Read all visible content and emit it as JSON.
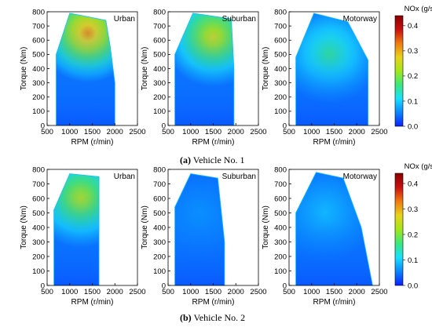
{
  "colorbar": {
    "title": "NOx (g/s)",
    "ticks": [
      "0.4",
      "0.3",
      "0.2",
      "0.1",
      "0.0"
    ],
    "range": [
      0,
      0.44
    ],
    "colors": [
      "#0a1fff",
      "#0a86ff",
      "#19e0ff",
      "#3ae87a",
      "#a3e619",
      "#e8d21a",
      "#f07a10",
      "#c81010",
      "#8a0000"
    ]
  },
  "captions": [
    {
      "label": "(a)",
      "text": "Vehicle No. 1"
    },
    {
      "label": "(b)",
      "text": "Vehicle No. 2"
    }
  ],
  "chart_data": [
    {
      "type": "heatmap",
      "title": "Urban",
      "xlabel": "RPM (r/min)",
      "ylabel": "Torque (Nm)",
      "xlim": [
        500,
        2500
      ],
      "ylim": [
        0,
        800
      ],
      "xticks": [
        "500",
        "1000",
        "1500",
        "2000",
        "2500"
      ],
      "yticks": [
        "0",
        "100",
        "200",
        "300",
        "400",
        "500",
        "600",
        "700",
        "800"
      ],
      "envelope": [
        [
          700,
          0
        ],
        [
          700,
          500
        ],
        [
          1000,
          790
        ],
        [
          1800,
          740
        ],
        [
          1900,
          550
        ],
        [
          2000,
          300
        ],
        [
          2000,
          0
        ]
      ],
      "nox_peak": 0.32,
      "nox_peak_at": [
        1400,
        650
      ]
    },
    {
      "type": "heatmap",
      "title": "Suburban",
      "xlabel": "RPM (r/min)",
      "ylabel": "Torque (Nm)",
      "xlim": [
        500,
        2500
      ],
      "ylim": [
        0,
        800
      ],
      "xticks": [
        "500",
        "1000",
        "1500",
        "2000",
        "2500"
      ],
      "yticks": [
        "0",
        "100",
        "200",
        "300",
        "400",
        "500",
        "600",
        "700",
        "800"
      ],
      "envelope": [
        [
          650,
          0
        ],
        [
          650,
          500
        ],
        [
          1050,
          790
        ],
        [
          1900,
          750
        ],
        [
          1960,
          400
        ],
        [
          1960,
          0
        ]
      ],
      "nox_peak": 0.26,
      "nox_peak_at": [
        1500,
        620
      ]
    },
    {
      "type": "heatmap",
      "title": "Motorway",
      "xlabel": "RPM (r/min)",
      "ylabel": "Torque (Nm)",
      "xlim": [
        500,
        2500
      ],
      "ylim": [
        0,
        800
      ],
      "xticks": [
        "500",
        "1000",
        "1500",
        "2000",
        "2500"
      ],
      "yticks": [
        "0",
        "100",
        "200",
        "300",
        "400",
        "500",
        "600",
        "700",
        "800"
      ],
      "envelope": [
        [
          650,
          0
        ],
        [
          650,
          480
        ],
        [
          1050,
          790
        ],
        [
          1800,
          730
        ],
        [
          2250,
          460
        ],
        [
          2250,
          0
        ]
      ],
      "nox_peak": 0.16,
      "nox_peak_at": [
        1400,
        500
      ]
    },
    {
      "type": "heatmap",
      "title": "Urban",
      "xlabel": "RPM (r/min)",
      "ylabel": "Torque (Nm)",
      "xlim": [
        500,
        2500
      ],
      "ylim": [
        0,
        800
      ],
      "xticks": [
        "500",
        "1000",
        "1500",
        "2000",
        "2500"
      ],
      "yticks": [
        "0",
        "100",
        "200",
        "300",
        "400",
        "500",
        "600",
        "700",
        "800"
      ],
      "envelope": [
        [
          650,
          0
        ],
        [
          650,
          520
        ],
        [
          1000,
          770
        ],
        [
          1650,
          750
        ],
        [
          1650,
          0
        ]
      ],
      "nox_peak": 0.24,
      "nox_peak_at": [
        1250,
        600
      ]
    },
    {
      "type": "heatmap",
      "title": "Suburban",
      "xlabel": "RPM (r/min)",
      "ylabel": "Torque (Nm)",
      "xlim": [
        500,
        2500
      ],
      "ylim": [
        0,
        800
      ],
      "xticks": [
        "500",
        "1000",
        "1500",
        "2000",
        "2500"
      ],
      "yticks": [
        "0",
        "100",
        "200",
        "300",
        "400",
        "500",
        "600",
        "700",
        "800"
      ],
      "envelope": [
        [
          650,
          0
        ],
        [
          650,
          540
        ],
        [
          1000,
          770
        ],
        [
          1600,
          740
        ],
        [
          1750,
          300
        ],
        [
          1750,
          0
        ]
      ],
      "nox_peak": 0.06,
      "nox_peak_at": [
        1200,
        500
      ]
    },
    {
      "type": "heatmap",
      "title": "Motorway",
      "xlabel": "RPM (r/min)",
      "ylabel": "Torque (Nm)",
      "xlim": [
        500,
        2500
      ],
      "ylim": [
        0,
        800
      ],
      "xticks": [
        "500",
        "1000",
        "1500",
        "2000",
        "2500"
      ],
      "yticks": [
        "0",
        "100",
        "200",
        "300",
        "400",
        "500",
        "600",
        "700",
        "800"
      ],
      "envelope": [
        [
          650,
          0
        ],
        [
          650,
          500
        ],
        [
          1100,
          780
        ],
        [
          1700,
          740
        ],
        [
          2100,
          400
        ],
        [
          2350,
          0
        ]
      ],
      "nox_peak": 0.09,
      "nox_peak_at": [
        1300,
        500
      ]
    }
  ]
}
